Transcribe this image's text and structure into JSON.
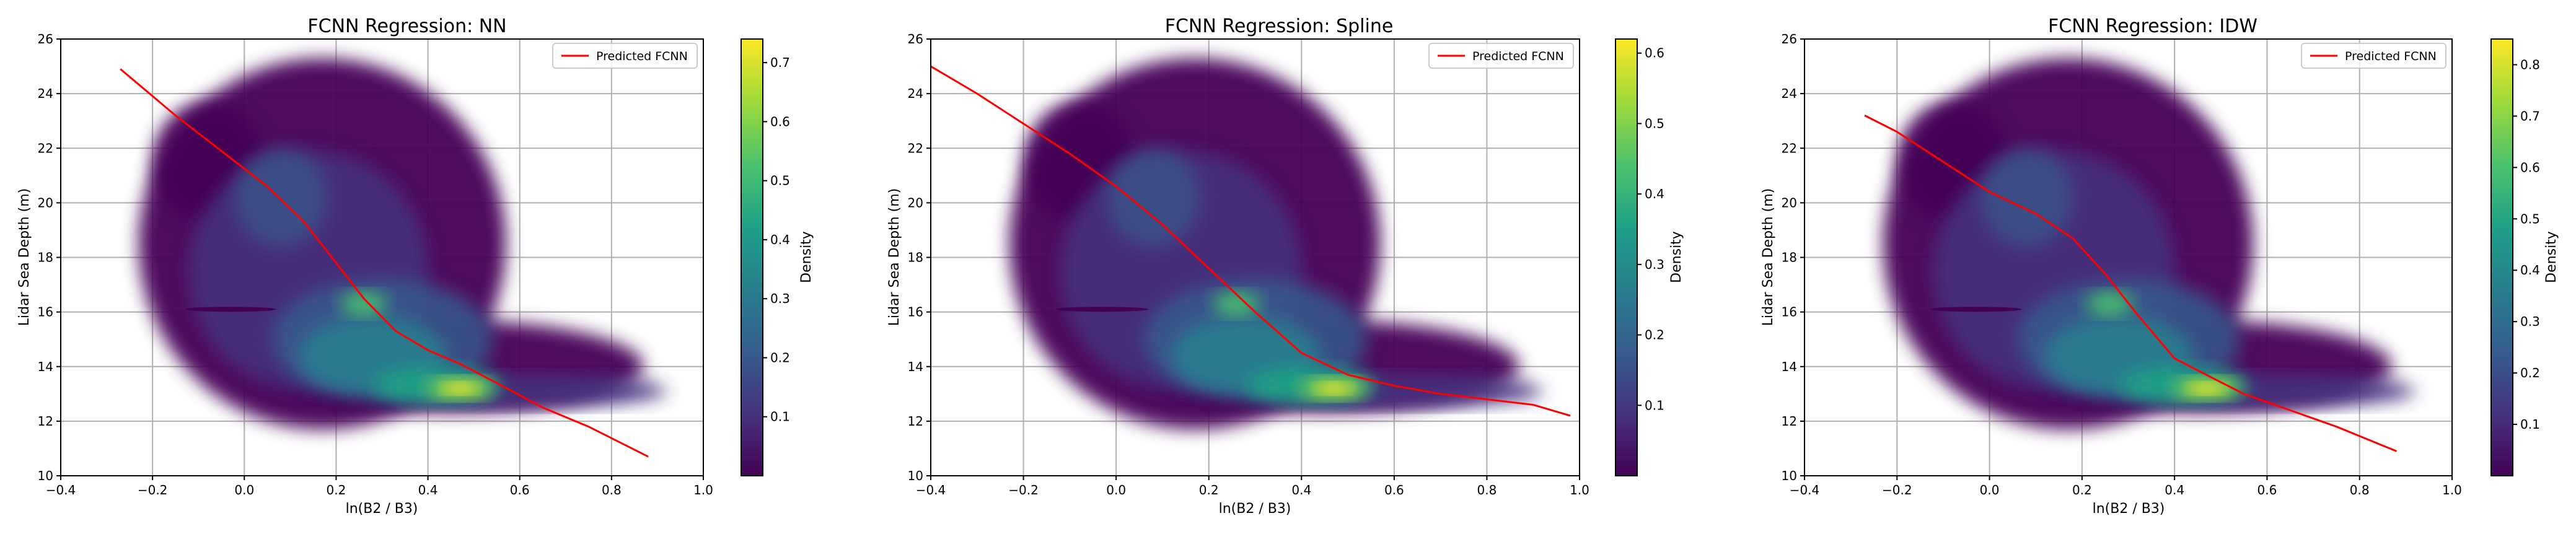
{
  "colormap": [
    "#440154",
    "#46327e",
    "#365c8d",
    "#277f8e",
    "#1fa187",
    "#4ac16d",
    "#a0da39",
    "#fde725"
  ],
  "fit_color": "#ff0000",
  "chart_data": [
    {
      "type": "scatter",
      "title": "FCNN Regression: NN",
      "xlabel": "ln(B2 / B3)",
      "ylabel": "Lidar Sea Depth (m)",
      "xlim": [
        -0.4,
        1.0
      ],
      "ylim": [
        10,
        26
      ],
      "xticks": [
        "−0.4",
        "−0.2",
        "0.0",
        "0.2",
        "0.4",
        "0.6",
        "0.8",
        "1.0"
      ],
      "yticks": [
        "10",
        "12",
        "14",
        "16",
        "18",
        "20",
        "22",
        "24",
        "26"
      ],
      "grid": true,
      "legend": {
        "position": "top-right",
        "entries": [
          "Predicted FCNN"
        ]
      },
      "colorbar": {
        "label": "Density",
        "min": 0.0,
        "max": 0.74,
        "ticks": [
          "0.1",
          "0.2",
          "0.3",
          "0.4",
          "0.5",
          "0.6",
          "0.7"
        ],
        "tick_values": [
          0.1,
          0.2,
          0.3,
          0.4,
          0.5,
          0.6,
          0.7
        ]
      },
      "series": [
        {
          "name": "Predicted FCNN",
          "kind": "line",
          "x": [
            -0.27,
            -0.15,
            -0.05,
            0.05,
            0.13,
            0.2,
            0.26,
            0.33,
            0.4,
            0.47,
            0.55,
            0.65,
            0.75,
            0.88
          ],
          "y": [
            24.9,
            23.2,
            21.9,
            20.6,
            19.3,
            17.8,
            16.5,
            15.3,
            14.6,
            14.1,
            13.4,
            12.5,
            11.8,
            10.7
          ]
        }
      ]
    },
    {
      "type": "scatter",
      "title": "FCNN Regression: Spline",
      "xlabel": "ln(B2 / B3)",
      "ylabel": "Lidar Sea Depth (m)",
      "xlim": [
        -0.4,
        1.0
      ],
      "ylim": [
        10,
        26
      ],
      "xticks": [
        "−0.4",
        "−0.2",
        "0.0",
        "0.2",
        "0.4",
        "0.6",
        "0.8",
        "1.0"
      ],
      "yticks": [
        "10",
        "12",
        "14",
        "16",
        "18",
        "20",
        "22",
        "24",
        "26"
      ],
      "grid": true,
      "legend": {
        "position": "top-right",
        "entries": [
          "Predicted FCNN"
        ]
      },
      "colorbar": {
        "label": "Density",
        "min": 0.0,
        "max": 0.62,
        "ticks": [
          "0.1",
          "0.2",
          "0.3",
          "0.4",
          "0.5",
          "0.6"
        ],
        "tick_values": [
          0.1,
          0.2,
          0.3,
          0.4,
          0.5,
          0.6
        ]
      },
      "series": [
        {
          "name": "Predicted FCNN",
          "kind": "line",
          "x": [
            -0.4,
            -0.3,
            -0.2,
            -0.1,
            0.0,
            0.1,
            0.2,
            0.3,
            0.4,
            0.5,
            0.6,
            0.7,
            0.8,
            0.9,
            0.98
          ],
          "y": [
            25.0,
            24.0,
            22.9,
            21.8,
            20.6,
            19.2,
            17.6,
            16.0,
            14.5,
            13.7,
            13.3,
            13.0,
            12.8,
            12.6,
            12.2
          ]
        }
      ]
    },
    {
      "type": "scatter",
      "title": "FCNN Regression: IDW",
      "xlabel": "ln(B2 / B3)",
      "ylabel": "Lidar Sea Depth (m)",
      "xlim": [
        -0.4,
        1.0
      ],
      "ylim": [
        10,
        26
      ],
      "xticks": [
        "−0.4",
        "−0.2",
        "0.0",
        "0.2",
        "0.4",
        "0.6",
        "0.8",
        "1.0"
      ],
      "yticks": [
        "10",
        "12",
        "14",
        "16",
        "18",
        "20",
        "22",
        "24",
        "26"
      ],
      "grid": true,
      "legend": {
        "position": "top-right",
        "entries": [
          "Predicted FCNN"
        ]
      },
      "colorbar": {
        "label": "Density",
        "min": 0.0,
        "max": 0.85,
        "ticks": [
          "0.1",
          "0.2",
          "0.3",
          "0.4",
          "0.5",
          "0.6",
          "0.7",
          "0.8"
        ],
        "tick_values": [
          0.1,
          0.2,
          0.3,
          0.4,
          0.5,
          0.6,
          0.7,
          0.8
        ]
      },
      "series": [
        {
          "name": "Predicted FCNN",
          "kind": "line",
          "x": [
            -0.27,
            -0.2,
            -0.1,
            0.0,
            0.1,
            0.18,
            0.25,
            0.32,
            0.4,
            0.48,
            0.55,
            0.65,
            0.75,
            0.88
          ],
          "y": [
            23.2,
            22.6,
            21.5,
            20.4,
            19.6,
            18.7,
            17.4,
            15.9,
            14.3,
            13.6,
            13.0,
            12.4,
            11.8,
            10.9
          ]
        }
      ]
    }
  ]
}
